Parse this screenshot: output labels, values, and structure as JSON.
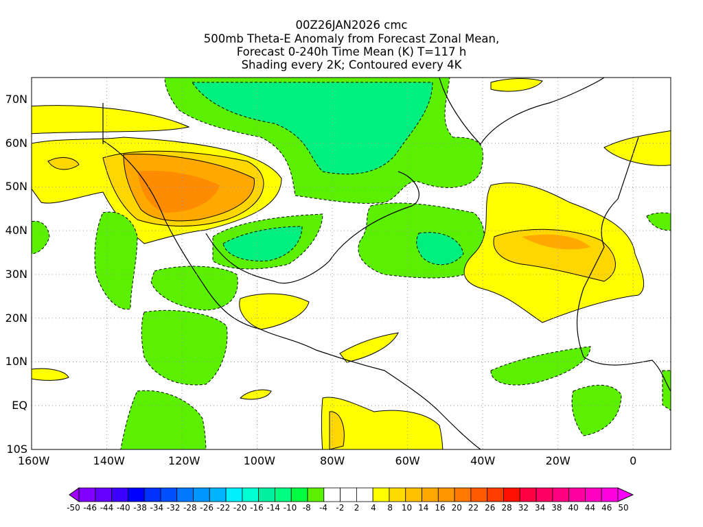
{
  "title": {
    "line1": "00Z26JAN2026 cmc",
    "line2": "500mb Theta-E Anomaly from Forecast Zonal Mean,",
    "line3": "Forecast 0-240h Time Mean (K) T=117 h",
    "line4": "Shading every 2K; Contoured every 4K"
  },
  "map": {
    "lon_labels": [
      "160W",
      "140W",
      "120W",
      "100W",
      "80W",
      "60W",
      "40W",
      "20W",
      "0"
    ],
    "lat_labels": [
      "70N",
      "60N",
      "50N",
      "40N",
      "30N",
      "20N",
      "10N",
      "EQ",
      "10S"
    ],
    "lon_range": [
      -160,
      10
    ],
    "lat_range": [
      -10,
      75
    ],
    "colors": {
      "green": "#5af000",
      "mid_green": "#00f080",
      "yellow": "#ffff00",
      "gold": "#ffd700",
      "orange": "#ffa800",
      "dark_orange": "#ff8c00"
    }
  },
  "colorbar": {
    "labels": [
      "-50",
      "-46",
      "-44",
      "-40",
      "-38",
      "-34",
      "-32",
      "-28",
      "-26",
      "-22",
      "-20",
      "-16",
      "-14",
      "-10",
      "-8",
      "-4",
      "-2",
      "2",
      "4",
      "8",
      "10",
      "14",
      "16",
      "20",
      "22",
      "26",
      "28",
      "32",
      "34",
      "38",
      "40",
      "44",
      "46",
      "50"
    ],
    "colors": [
      "#8200ff",
      "#6400ff",
      "#3c00ff",
      "#0000ff",
      "#0032ff",
      "#0050ff",
      "#0078ff",
      "#0096ff",
      "#00b4ff",
      "#00f0ff",
      "#00ffd2",
      "#00f0a0",
      "#00ff80",
      "#00ff40",
      "#5af000",
      "#ffffff",
      "#ffffff",
      "#ffffff",
      "#ffff00",
      "#ffdc00",
      "#ffc000",
      "#ffa800",
      "#ff9600",
      "#ff7800",
      "#ff5a00",
      "#ff3c00",
      "#ff1000",
      "#ff0040",
      "#ff0064",
      "#ff0080",
      "#ff00a0",
      "#ff00c0",
      "#ff00e0"
    ],
    "left_arrow_color": "#a000ff",
    "right_arrow_color": "#ff00ff"
  }
}
